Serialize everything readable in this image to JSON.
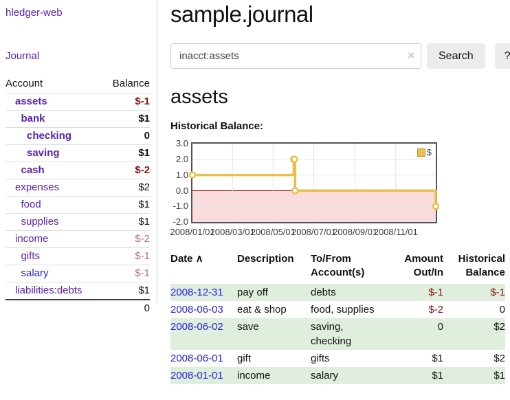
{
  "app": {
    "brand": "hledger-web"
  },
  "colors": {
    "link_purple": "#5a21b0",
    "link_blue": "#2323dd",
    "negative": "#8f0e0e",
    "negative_muted": "#b87070",
    "row_green": "#dfeedd",
    "series_gold": "#e8c04a"
  },
  "sidebar": {
    "nav_journal": "Journal",
    "accounts": {
      "header_account": "Account",
      "header_balance": "Balance",
      "rows": [
        {
          "name": "assets",
          "indent": 1,
          "bold": true,
          "balance": "$-1",
          "negative": true,
          "muted": false,
          "blue": false
        },
        {
          "name": "bank",
          "indent": 2,
          "bold": true,
          "balance": "$1",
          "negative": false,
          "muted": false,
          "blue": false
        },
        {
          "name": "checking",
          "indent": 3,
          "bold": true,
          "balance": "0",
          "negative": false,
          "muted": false,
          "blue": false
        },
        {
          "name": "saving",
          "indent": 3,
          "bold": true,
          "balance": "$1",
          "negative": false,
          "muted": false,
          "blue": false
        },
        {
          "name": "cash",
          "indent": 2,
          "bold": true,
          "balance": "$-2",
          "negative": true,
          "muted": false,
          "blue": false
        },
        {
          "name": "expenses",
          "indent": 1,
          "bold": false,
          "balance": "$2",
          "negative": false,
          "muted": false,
          "blue": false
        },
        {
          "name": "food",
          "indent": 2,
          "bold": false,
          "balance": "$1",
          "negative": false,
          "muted": false,
          "blue": false
        },
        {
          "name": "supplies",
          "indent": 2,
          "bold": false,
          "balance": "$1",
          "negative": false,
          "muted": false,
          "blue": false
        },
        {
          "name": "income",
          "indent": 1,
          "bold": false,
          "balance": "$-2",
          "negative": true,
          "muted": true,
          "blue": false
        },
        {
          "name": "gifts",
          "indent": 2,
          "bold": false,
          "balance": "$-1",
          "negative": true,
          "muted": true,
          "blue": false
        },
        {
          "name": "salary",
          "indent": 2,
          "bold": false,
          "balance": "$-1",
          "negative": true,
          "muted": true,
          "blue": true
        },
        {
          "name": "liabilities:debts",
          "indent": 1,
          "bold": false,
          "balance": "$1",
          "negative": false,
          "muted": false,
          "blue": false
        }
      ],
      "total": "0"
    }
  },
  "main": {
    "title": "sample.journal",
    "search": {
      "value": "inacct:assets",
      "clear_icon": "×",
      "search_button": "Search",
      "help_button": "?"
    },
    "account_heading": "assets",
    "chart_label": "Historical Balance:"
  },
  "chart_data": {
    "type": "line",
    "style": "step-after",
    "title": "Historical Balance:",
    "series": [
      {
        "name": "$",
        "color": "#e8c04a",
        "points": [
          {
            "date": "2008-01-01",
            "value": 1
          },
          {
            "date": "2008-06-01",
            "value": 2
          },
          {
            "date": "2008-06-02",
            "value": 2
          },
          {
            "date": "2008-06-03",
            "value": 0
          },
          {
            "date": "2008-12-31",
            "value": -1
          }
        ]
      }
    ],
    "x_range": [
      "2008-01-01",
      "2008-12-31"
    ],
    "x_ticks": [
      "2008/01/01",
      "2008/03/01",
      "2008/05/01",
      "2008/07/01",
      "2008/09/01",
      "2008/11/01"
    ],
    "y_ticks": [
      3.0,
      2.0,
      1.0,
      0.0,
      -1.0,
      -2.0
    ],
    "ylim": [
      -2,
      3
    ],
    "grid": true,
    "legend_position": "top-right",
    "negative_region_fill": "#fbdcdc",
    "zero_line_color": "#8b0000",
    "grid_color": "#e3e3e3"
  },
  "register": {
    "columns": [
      {
        "lines": [
          "Date"
        ],
        "align": "left",
        "sort_icon": "caret-up"
      },
      {
        "lines": [
          "Description"
        ],
        "align": "left"
      },
      {
        "lines": [
          "To/From",
          "Account(s)"
        ],
        "align": "left"
      },
      {
        "lines": [
          "Amount",
          "Out/In"
        ],
        "align": "right"
      },
      {
        "lines": [
          "Historical",
          "Balance"
        ],
        "align": "right"
      }
    ],
    "sort_caret": "∧",
    "rows": [
      {
        "date": "2008-12-31",
        "description": "pay off",
        "accounts_lines": [
          "debts"
        ],
        "amount": "$-1",
        "amount_negative": true,
        "balance": "$-1",
        "balance_negative": true
      },
      {
        "date": "2008-06-03",
        "description": "eat & shop",
        "accounts_lines": [
          "food, supplies"
        ],
        "amount": "$-2",
        "amount_negative": true,
        "balance": "0",
        "balance_negative": false
      },
      {
        "date": "2008-06-02",
        "description": "save",
        "accounts_lines": [
          "saving,",
          "checking"
        ],
        "amount": "0",
        "amount_negative": false,
        "balance": "$2",
        "balance_negative": false
      },
      {
        "date": "2008-06-01",
        "description": "gift",
        "accounts_lines": [
          "gifts"
        ],
        "amount": "$1",
        "amount_negative": false,
        "balance": "$2",
        "balance_negative": false
      },
      {
        "date": "2008-01-01",
        "description": "income",
        "accounts_lines": [
          "salary"
        ],
        "amount": "$1",
        "amount_negative": false,
        "balance": "$1",
        "balance_negative": false
      }
    ]
  }
}
